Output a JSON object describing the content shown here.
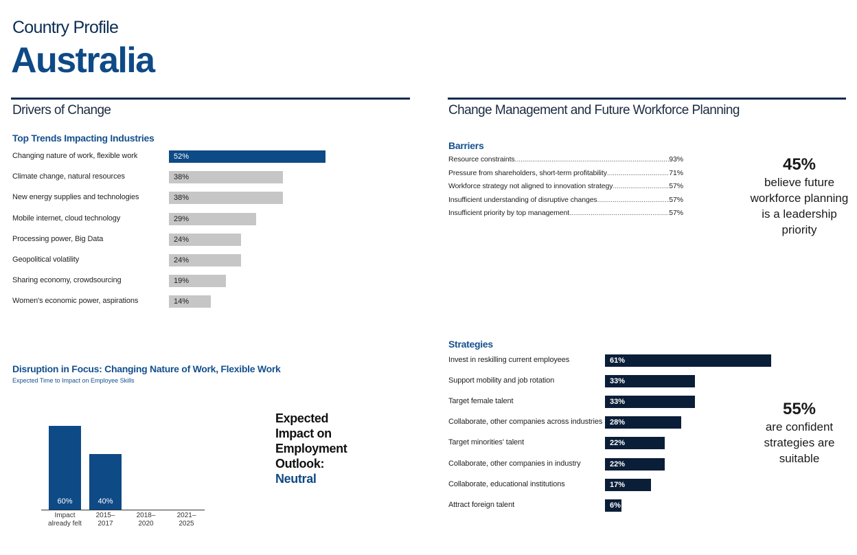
{
  "header": {
    "pretitle": "Country Profile",
    "title": "Australia"
  },
  "left": {
    "section_title": "Drivers of Change",
    "trends_title": "Top Trends Impacting Industries"
  },
  "right": {
    "section_title": "Change Management and Future Workforce Planning",
    "barriers_title": "Barriers",
    "strategies_title": "Strategies",
    "callout1": {
      "value": "45%",
      "text": [
        "believe future",
        "workforce planning",
        "is a leadership",
        "priority"
      ]
    },
    "callout2": {
      "value": "55%",
      "text": [
        "are confident",
        "strategies are",
        "suitable"
      ]
    }
  },
  "disruption": {
    "title": "Disruption in Focus: Changing Nature of Work, Flexible Work",
    "subtitle": "Expected Time to Impact on Employee Skills",
    "outlook_lines": [
      "Expected",
      "Impact on",
      "Employment",
      "Outlook:"
    ],
    "outlook_value": "Neutral"
  },
  "colors": {
    "accent": "#0e4a86",
    "navy": "#0b1e38",
    "grey": "#c6c6c6"
  },
  "chart_data": [
    {
      "type": "bar",
      "title": "Top Trends Impacting Industries",
      "categories": [
        "Changing nature of work, flexible work",
        "Climate change, natural resources",
        "New energy supplies and technologies",
        "Mobile internet, cloud technology",
        "Processing power, Big Data",
        "Geopolitical volatility",
        "Sharing economy, crowdsourcing",
        "Women's economic power, aspirations"
      ],
      "values": [
        52,
        38,
        38,
        29,
        24,
        24,
        19,
        14
      ],
      "labels": [
        "52%",
        "38%",
        "38%",
        "29%",
        "24%",
        "24%",
        "19%",
        "14%"
      ],
      "orientation": "horizontal"
    },
    {
      "type": "table",
      "title": "Barriers",
      "rows": [
        {
          "label": "Resource constraints",
          "value": "93%"
        },
        {
          "label": "Pressure from shareholders, short-term profitability",
          "value": "71%"
        },
        {
          "label": "Workforce strategy not aligned to innovation strategy",
          "value": "57%"
        },
        {
          "label": "Insufficient understanding of disruptive changes",
          "value": "57%"
        },
        {
          "label": "Insufficient priority by top management",
          "value": "57%"
        }
      ]
    },
    {
      "type": "bar",
      "title": "Strategies",
      "categories": [
        "Invest in reskilling current employees",
        "Support mobility and job rotation",
        "Target female talent",
        "Collaborate, other companies across industries",
        "Target minorities' talent",
        "Collaborate, other companies in industry",
        "Collaborate, educational institutions",
        "Attract foreign talent"
      ],
      "values": [
        61,
        33,
        33,
        28,
        22,
        22,
        17,
        6
      ],
      "labels": [
        "61%",
        "33%",
        "33%",
        "28%",
        "22%",
        "22%",
        "17%",
        "6%"
      ],
      "orientation": "horizontal"
    },
    {
      "type": "bar",
      "title": "Disruption in Focus: Changing Nature of Work, Flexible Work",
      "subtitle": "Expected Time to Impact on Employee Skills",
      "categories": [
        [
          "Impact",
          "already felt"
        ],
        [
          "2015–",
          "2017"
        ],
        [
          "2018–",
          "2020"
        ],
        [
          "2021–",
          "2025"
        ]
      ],
      "values": [
        60,
        40,
        0,
        0
      ],
      "labels": [
        "60%",
        "40%",
        "",
        ""
      ]
    }
  ]
}
